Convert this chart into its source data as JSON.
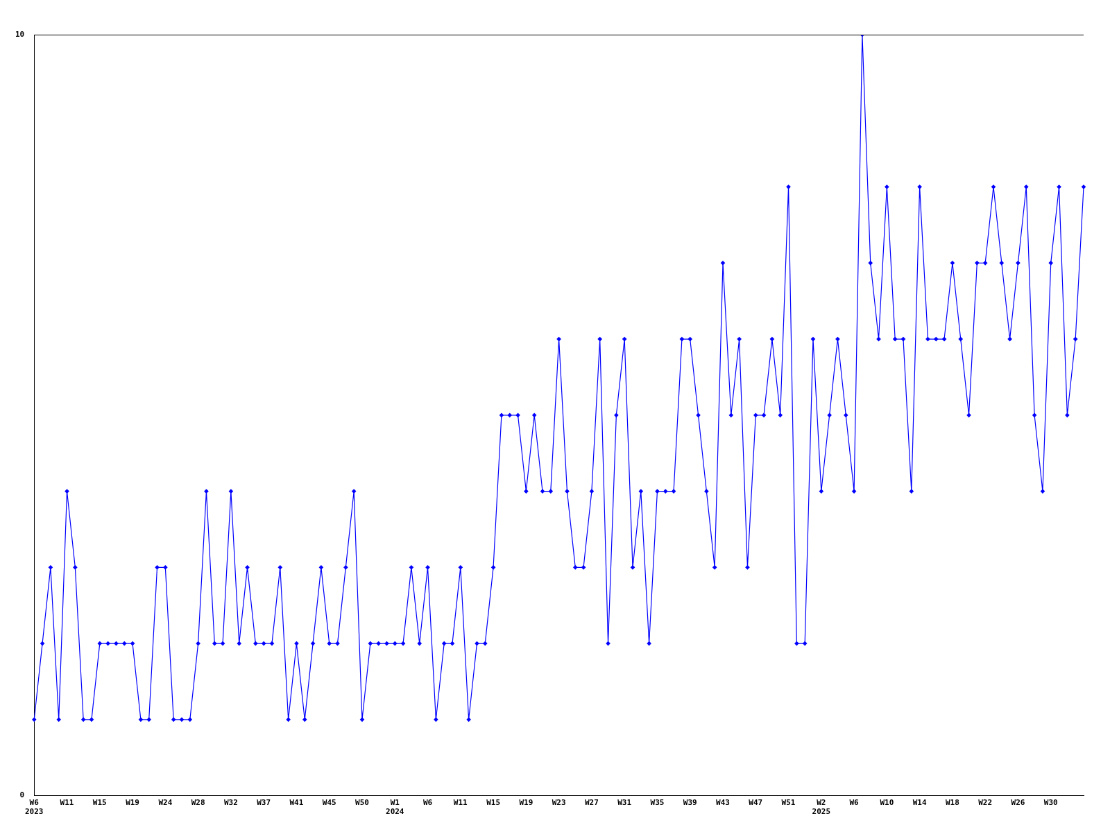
{
  "chart_data": {
    "type": "line",
    "categories": [
      "W6\n2023",
      null,
      null,
      null,
      "W11",
      null,
      null,
      null,
      "W15",
      null,
      null,
      null,
      "W19",
      null,
      null,
      null,
      "W24",
      null,
      null,
      null,
      "W28",
      null,
      null,
      null,
      "W32",
      null,
      null,
      null,
      "W37",
      null,
      null,
      null,
      "W41",
      null,
      null,
      null,
      "W45",
      null,
      null,
      null,
      "W50",
      null,
      null,
      null,
      "W1\n2024",
      null,
      null,
      null,
      "W6",
      null,
      null,
      null,
      "W11",
      null,
      null,
      null,
      "W15",
      null,
      null,
      null,
      "W19",
      null,
      null,
      null,
      "W23",
      null,
      null,
      null,
      "W27",
      null,
      null,
      null,
      "W31",
      null,
      null,
      null,
      "W35",
      null,
      null,
      null,
      "W39",
      null,
      null,
      null,
      "W43",
      null,
      null,
      null,
      "W47",
      null,
      null,
      null,
      "W51",
      null,
      null,
      null,
      "W2\n2025",
      null,
      null,
      null,
      "W6",
      null,
      null,
      null,
      "W10",
      null,
      null,
      null,
      "W14",
      null,
      null,
      null,
      "W18",
      null,
      null,
      null,
      "W22",
      null,
      null,
      null,
      "W26",
      null,
      null,
      null,
      "W30",
      null,
      null,
      null,
      null
    ],
    "series": [
      {
        "color": "#0000ff",
        "values": [
          1,
          2,
          3,
          1,
          4,
          3,
          1,
          1,
          2,
          2,
          2,
          2,
          2,
          1,
          1,
          3,
          3,
          1,
          1,
          1,
          2,
          4,
          2,
          2,
          4,
          2,
          3,
          2,
          2,
          2,
          3,
          1,
          2,
          1,
          2,
          3,
          2,
          2,
          3,
          4,
          1,
          2,
          2,
          2,
          2,
          2,
          3,
          2,
          3,
          1,
          2,
          2,
          3,
          1,
          2,
          2,
          3,
          5,
          5,
          5,
          4,
          5,
          4,
          4,
          6,
          4,
          3,
          3,
          4,
          6,
          2,
          5,
          6,
          3,
          4,
          2,
          4,
          4,
          4,
          6,
          6,
          5,
          4,
          3,
          7,
          5,
          6,
          3,
          5,
          5,
          6,
          5,
          8,
          2,
          2,
          6,
          4,
          5,
          6,
          5,
          4,
          10,
          7,
          6,
          8,
          6,
          6,
          4,
          8,
          6,
          6,
          6,
          7,
          6,
          5,
          7,
          7,
          8,
          7,
          6,
          7,
          8,
          5,
          4,
          7,
          8,
          5,
          6,
          8
        ]
      }
    ],
    "ylim": [
      0,
      10
    ],
    "yticks": [
      0,
      10
    ],
    "grid": false,
    "legend": false,
    "marker": "diamond",
    "line_style": "solid"
  }
}
